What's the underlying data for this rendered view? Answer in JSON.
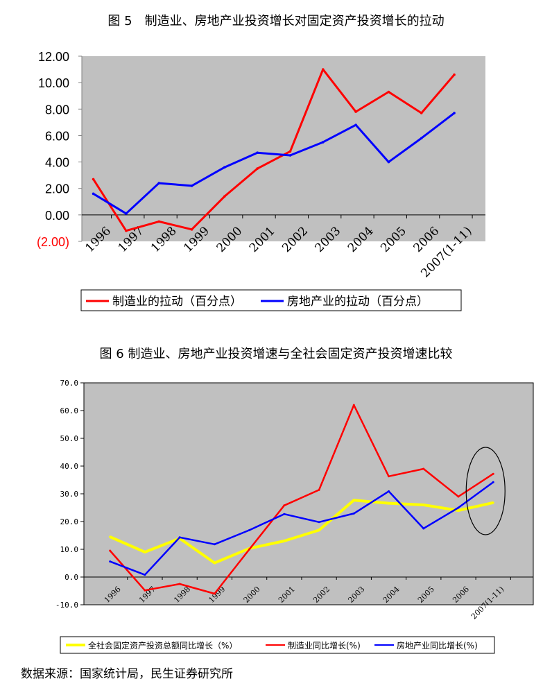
{
  "figure1": {
    "title": "图 5　制造业、房地产业投资增长对固定资产投资增长的拉动"
  },
  "figure2": {
    "title": "图 6 制造业、房地产业投资增速与全社会固定资产投资增速比较"
  },
  "source": "数据来源：国家统计局，民生证券研究所",
  "colors": {
    "red": "#ff0000",
    "blue": "#0000ff",
    "yellow": "#ffff00",
    "plot_bg": "#c0c0c0"
  },
  "chart_data": [
    {
      "type": "line",
      "title": "图 5　制造业、房地产业投资增长对固定资产投资增长的拉动",
      "categories": [
        "1996",
        "1997",
        "1998",
        "1999",
        "2000",
        "2001",
        "2002",
        "2003",
        "2004",
        "2005",
        "2006",
        "2007(1-11)"
      ],
      "y_ticks": [
        "12.00",
        "10.00",
        "8.00",
        "6.00",
        "4.00",
        "2.00",
        "0.00",
        "(2.00)"
      ],
      "ylim": [
        -2,
        12
      ],
      "series": [
        {
          "name": "制造业的拉动（百分点）",
          "color": "#ff0000",
          "values": [
            2.7,
            -1.2,
            -0.5,
            -1.1,
            1.4,
            3.5,
            4.8,
            11.0,
            7.8,
            9.3,
            7.7,
            10.6
          ]
        },
        {
          "name": "房地产业的拉动（百分点）",
          "color": "#0000ff",
          "values": [
            1.6,
            0.1,
            2.4,
            2.2,
            3.6,
            4.7,
            4.5,
            5.5,
            6.8,
            4.0,
            5.8,
            7.7
          ]
        }
      ],
      "legend": [
        "制造业的拉动（百分点）",
        "房地产业的拉动（百分点）"
      ]
    },
    {
      "type": "line",
      "title": "图 6 制造业、房地产业投资增速与全社会固定资产投资增速比较",
      "categories": [
        "1996",
        "1997",
        "1998",
        "1999",
        "2000",
        "2001",
        "2002",
        "2003",
        "2004",
        "2005",
        "2006",
        "2007(1-11)"
      ],
      "y_ticks": [
        "70.0",
        "60.0",
        "50.0",
        "40.0",
        "30.0",
        "20.0",
        "10.0",
        "0.0",
        "-10.0"
      ],
      "ylim": [
        -10,
        70
      ],
      "series": [
        {
          "name": "全社会固定资产投资总额同比增长（%）",
          "color": "#ffff00",
          "values": [
            14.5,
            9.0,
            13.9,
            5.1,
            10.3,
            13.0,
            16.9,
            27.7,
            26.6,
            26.0,
            24.0,
            26.8
          ]
        },
        {
          "name": "制造业同比增长(%)",
          "color": "#ff0000",
          "values": [
            9.5,
            -4.8,
            -2.5,
            -6.0,
            10.0,
            25.8,
            31.4,
            62.0,
            36.3,
            39.0,
            29.0,
            37.2
          ]
        },
        {
          "name": "房地产业同比增长(%)",
          "color": "#0000ff",
          "values": [
            5.6,
            0.8,
            14.3,
            11.8,
            16.9,
            22.7,
            19.8,
            22.9,
            30.9,
            17.5,
            25.0,
            34.2
          ]
        }
      ],
      "legend": [
        "全社会固定资产投资总额同比增长（%）",
        "制造业同比增长(%)",
        "房地产业同比增长(%)"
      ],
      "annotation": "ellipse highlighting 2007(1-11) values"
    }
  ]
}
